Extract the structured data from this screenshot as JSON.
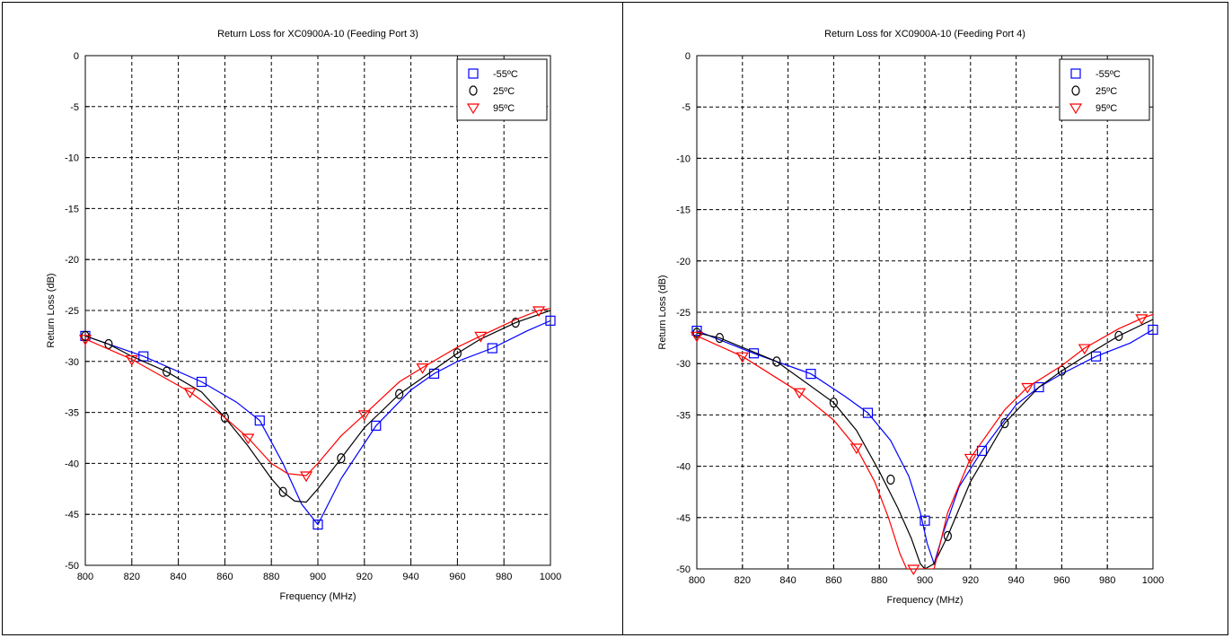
{
  "chart_data": [
    {
      "type": "line",
      "title": "Return Loss for XC0900A-10 (Feeding Port 3)",
      "xlabel": "Frequency (MHz)",
      "ylabel": "Return Loss (dB)",
      "xlim": [
        800,
        1000
      ],
      "ylim": [
        -50,
        0
      ],
      "xticks": [
        800,
        820,
        840,
        860,
        880,
        900,
        920,
        940,
        960,
        980,
        1000
      ],
      "yticks": [
        0,
        -5,
        -10,
        -15,
        -20,
        -25,
        -30,
        -35,
        -40,
        -45,
        -50
      ],
      "grid": true,
      "legend_position": "top-right",
      "series": [
        {
          "name": "-55ºC",
          "color": "#0000ff",
          "marker": "square",
          "x": [
            800,
            825,
            850,
            865,
            875,
            885,
            893,
            900,
            910,
            925,
            940,
            950,
            960,
            975,
            990,
            1000
          ],
          "y": [
            -27.5,
            -29.5,
            -32.0,
            -34.0,
            -35.8,
            -40.0,
            -44.0,
            -46.0,
            -41.5,
            -36.3,
            -32.8,
            -31.2,
            -30.0,
            -28.7,
            -27.0,
            -26.0
          ],
          "marker_x": [
            800,
            825,
            850,
            875,
            900,
            925,
            950,
            975,
            1000
          ],
          "marker_y": [
            -27.5,
            -29.5,
            -32.0,
            -35.8,
            -46.0,
            -36.3,
            -31.2,
            -28.7,
            -26.0
          ]
        },
        {
          "name": "25ºC",
          "color": "#000000",
          "marker": "circle",
          "x": [
            800,
            810,
            820,
            835,
            850,
            860,
            870,
            880,
            885,
            890,
            895,
            900,
            910,
            920,
            935,
            950,
            960,
            970,
            985,
            1000
          ],
          "y": [
            -27.5,
            -28.3,
            -29.5,
            -31.0,
            -33.0,
            -35.5,
            -38.3,
            -41.5,
            -42.8,
            -43.7,
            -43.8,
            -42.5,
            -39.5,
            -36.5,
            -33.2,
            -30.8,
            -29.2,
            -27.8,
            -26.2,
            -25.0
          ],
          "marker_x": [
            800,
            810,
            835,
            860,
            885,
            910,
            935,
            960,
            985
          ],
          "marker_y": [
            -27.5,
            -28.3,
            -31.0,
            -35.5,
            -42.8,
            -39.5,
            -33.2,
            -29.2,
            -26.2
          ]
        },
        {
          "name": "95ºC",
          "color": "#ff0000",
          "marker": "triangle-down",
          "x": [
            800,
            820,
            845,
            860,
            870,
            880,
            887,
            895,
            900,
            910,
            920,
            935,
            945,
            960,
            970,
            985,
            995,
            1000
          ],
          "y": [
            -27.8,
            -29.8,
            -33.0,
            -35.5,
            -37.5,
            -40.0,
            -41.0,
            -41.2,
            -40.0,
            -37.3,
            -35.2,
            -32.0,
            -30.6,
            -28.6,
            -27.5,
            -25.9,
            -25.0,
            -24.8
          ],
          "marker_x": [
            800,
            820,
            845,
            870,
            895,
            920,
            945,
            970,
            995
          ],
          "marker_y": [
            -27.8,
            -29.8,
            -33.0,
            -37.5,
            -41.2,
            -35.2,
            -30.6,
            -27.5,
            -25.0
          ]
        }
      ]
    },
    {
      "type": "line",
      "title": "Return Loss for XC0900A-10 (Feeding Port 4)",
      "xlabel": "Frequency (MHz)",
      "ylabel": "Return Loss (dB)",
      "xlim": [
        800,
        1000
      ],
      "ylim": [
        -50,
        0
      ],
      "xticks": [
        800,
        820,
        840,
        860,
        880,
        900,
        920,
        940,
        960,
        980,
        1000
      ],
      "yticks": [
        0,
        -5,
        -10,
        -15,
        -20,
        -25,
        -30,
        -35,
        -40,
        -45,
        -50
      ],
      "grid": true,
      "legend_position": "top-right",
      "series": [
        {
          "name": "-55ºC",
          "color": "#0000ff",
          "marker": "square",
          "x": [
            800,
            825,
            850,
            865,
            875,
            885,
            893,
            898,
            901,
            904,
            908,
            915,
            925,
            940,
            950,
            960,
            975,
            990,
            1000
          ],
          "y": [
            -26.8,
            -29.0,
            -31.0,
            -33.2,
            -34.8,
            -37.5,
            -41.0,
            -44.5,
            -47.5,
            -49.5,
            -46.5,
            -42.0,
            -38.5,
            -34.0,
            -32.3,
            -31.0,
            -29.3,
            -28.0,
            -26.7
          ],
          "marker_x": [
            800,
            825,
            850,
            875,
            900,
            925,
            950,
            975,
            1000
          ],
          "marker_y": [
            -26.8,
            -29.0,
            -31.0,
            -34.8,
            -45.3,
            -38.5,
            -32.3,
            -29.3,
            -26.7
          ]
        },
        {
          "name": "25ºC",
          "color": "#000000",
          "marker": "circle",
          "x": [
            800,
            810,
            835,
            860,
            870,
            880,
            888,
            894,
            898,
            900,
            904,
            910,
            920,
            935,
            950,
            960,
            970,
            985,
            1000
          ],
          "y": [
            -27.0,
            -27.5,
            -29.8,
            -33.8,
            -36.5,
            -40.5,
            -44.0,
            -47.0,
            -49.5,
            -50.0,
            -49.5,
            -46.8,
            -41.5,
            -35.8,
            -32.3,
            -30.7,
            -29.3,
            -27.3,
            -25.7
          ],
          "marker_x": [
            800,
            810,
            835,
            860,
            885,
            910,
            935,
            960,
            985
          ],
          "marker_y": [
            -27.0,
            -27.5,
            -29.8,
            -33.8,
            -41.3,
            -46.8,
            -35.8,
            -30.7,
            -27.3
          ]
        },
        {
          "name": "95ºC",
          "color": "#ff0000",
          "marker": "triangle-down",
          "x": [
            800,
            820,
            845,
            860,
            870,
            878,
            884,
            889,
            892,
            904,
            910,
            920,
            935,
            945,
            960,
            970,
            985,
            995,
            1000
          ],
          "y": [
            -27.3,
            -29.3,
            -32.8,
            -35.5,
            -38.2,
            -41.5,
            -45.0,
            -48.5,
            -50.0,
            -50.0,
            -44.5,
            -39.2,
            -34.5,
            -32.3,
            -30.2,
            -28.5,
            -26.6,
            -25.6,
            -25.2
          ],
          "marker_x": [
            800,
            820,
            845,
            870,
            895,
            920,
            945,
            970,
            995
          ],
          "marker_y": [
            -27.3,
            -29.3,
            -32.8,
            -38.2,
            -50.0,
            -39.2,
            -32.3,
            -28.5,
            -25.6
          ]
        }
      ]
    }
  ]
}
